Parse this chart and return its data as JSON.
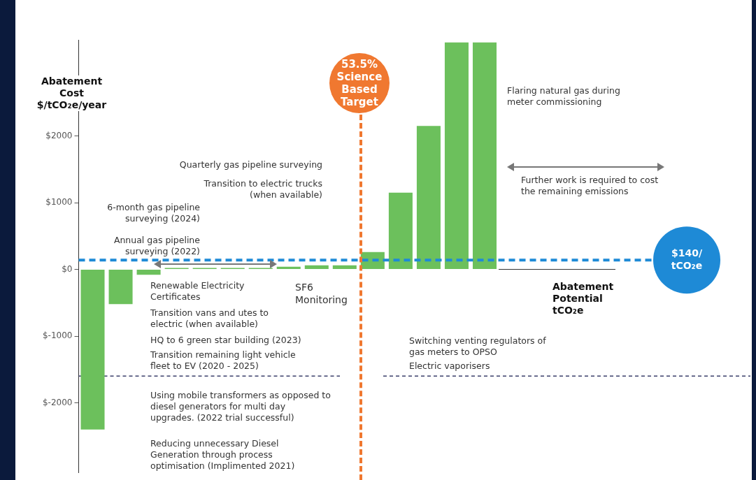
{
  "chart_data": {
    "type": "bar",
    "xlabel": "Abatement Potential tCO₂e",
    "ylabel": "Abatement Cost $/tCO₂e/year",
    "categories": [
      null,
      null,
      null,
      null,
      null,
      null,
      null,
      null,
      null,
      null,
      null,
      null,
      null,
      null,
      null
    ],
    "values": [
      -2400,
      -520,
      -80,
      20,
      20,
      20,
      20,
      40,
      60,
      60,
      260,
      1150,
      2150,
      3400,
      3400
    ],
    "color": "#6cc05c",
    "ylim": [
      -3050,
      3440
    ],
    "yticks": [
      {
        "value": -2000,
        "label": "$-2000"
      },
      {
        "value": -1000,
        "label": "$-1000"
      },
      {
        "value": 0,
        "label": "$0"
      },
      {
        "value": 1000,
        "label": "$1000"
      },
      {
        "value": 2000,
        "label": "$2000"
      }
    ],
    "ref_lines": [
      {
        "axis": "y",
        "value": 140,
        "label": "$140/ tCO₂e",
        "color": "#1e8ad6",
        "line_style": "dashed"
      },
      {
        "axis": "y",
        "value": -1600,
        "color": "#3a3f6a",
        "line_style": "dashed"
      }
    ],
    "annotations": [
      "53.5% Science Based Target",
      "Flaring natural gas during meter commissioning",
      "Quarterly gas pipeline surveying",
      "Transition to electric trucks (when available)",
      "6-month gas pipeline surveying (2024)",
      "Annual gas pipeline surveying (2022)",
      "Renewable Electricity Certificates",
      "SF6 Monitoring",
      "Transition vans and utes to electric (when available)",
      "HQ to 6 green star building (2023)",
      "Transition remaining light vehicle fleet to EV (2020 - 2025)",
      "Using mobile transformers as opposed to diesel generators for multi day upgrades. (2022 trial successful)",
      "Reducing unnecessary Diesel Generation through process optimisation (Implimented 2021)",
      "Further work is required to cost the remaining emissions",
      "Switching venting regulators of gas meters to OPSO",
      "Electric vaporisers"
    ],
    "grid": false,
    "legend": false
  }
}
